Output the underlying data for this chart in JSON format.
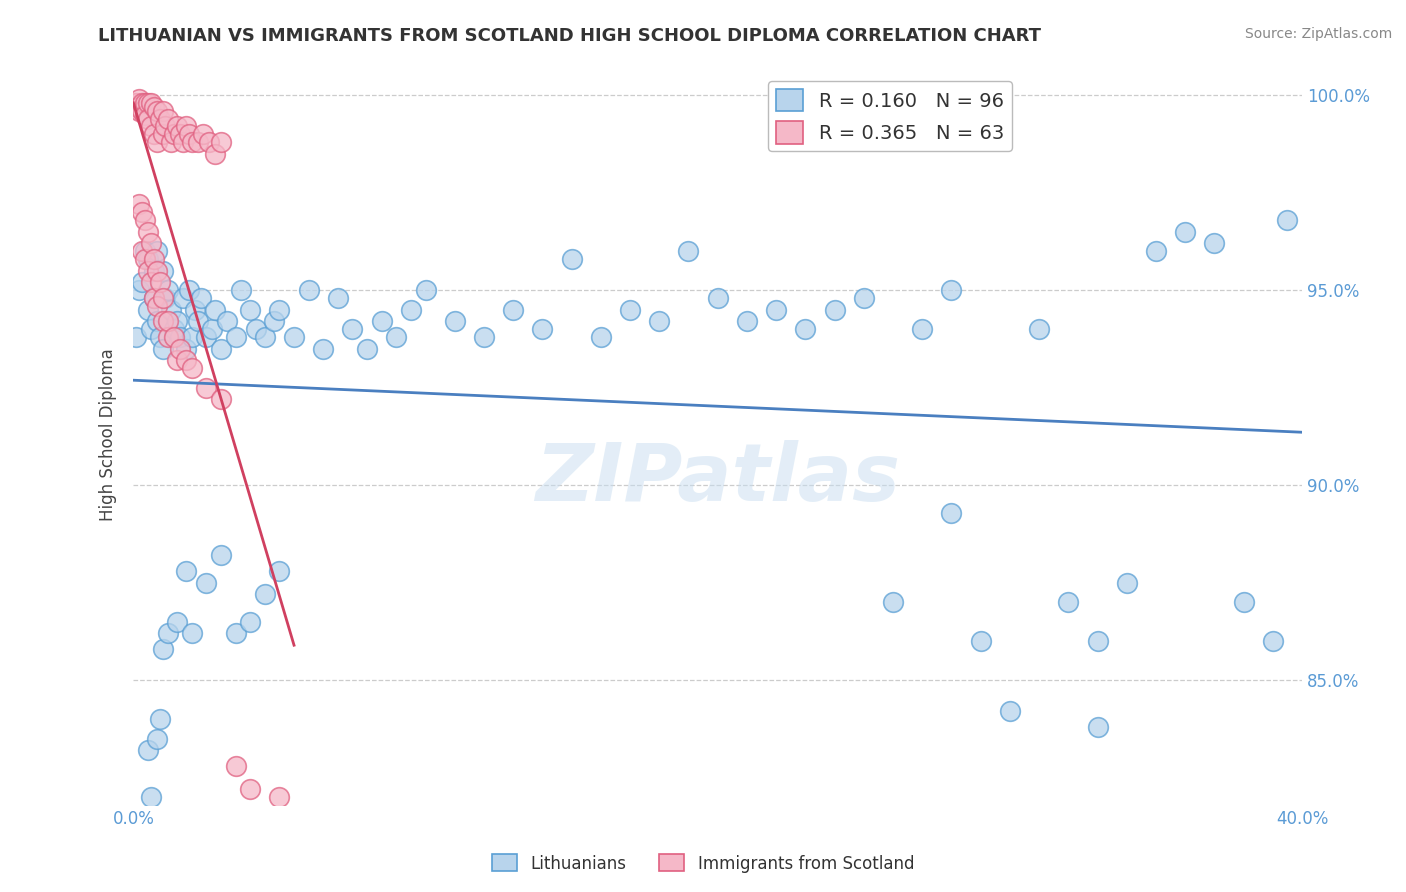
{
  "title": "LITHUANIAN VS IMMIGRANTS FROM SCOTLAND HIGH SCHOOL DIPLOMA CORRELATION CHART",
  "source": "Source: ZipAtlas.com",
  "ylabel": "High School Diploma",
  "xlim": [
    0.0,
    0.4
  ],
  "ylim": [
    0.818,
    1.008
  ],
  "yticks": [
    0.85,
    0.9,
    0.95,
    1.0
  ],
  "yticklabels": [
    "85.0%",
    "90.0%",
    "95.0%",
    "100.0%"
  ],
  "xtick_vals": [
    0.0,
    0.05,
    0.1,
    0.15,
    0.2,
    0.25,
    0.3,
    0.35,
    0.4
  ],
  "xtick_labels": [
    "0.0%",
    "",
    "",
    "",
    "",
    "",
    "",
    "",
    "40.0%"
  ],
  "blue_R": 0.16,
  "blue_N": 96,
  "pink_R": 0.365,
  "pink_N": 63,
  "blue_fill": "#b8d4ec",
  "pink_fill": "#f5b8c8",
  "blue_edge": "#5a9fd4",
  "pink_edge": "#e06080",
  "blue_line": "#4a7fc0",
  "pink_line": "#d04060",
  "grid_color": "#cccccc",
  "bg_color": "#ffffff",
  "watermark": "ZIPatlas",
  "blue_x": [
    0.001,
    0.002,
    0.003,
    0.004,
    0.005,
    0.005,
    0.006,
    0.007,
    0.007,
    0.008,
    0.008,
    0.009,
    0.01,
    0.01,
    0.011,
    0.012,
    0.013,
    0.014,
    0.015,
    0.016,
    0.017,
    0.018,
    0.019,
    0.02,
    0.021,
    0.022,
    0.023,
    0.025,
    0.027,
    0.028,
    0.03,
    0.032,
    0.035,
    0.037,
    0.04,
    0.042,
    0.045,
    0.048,
    0.05,
    0.055,
    0.06,
    0.065,
    0.07,
    0.075,
    0.08,
    0.085,
    0.09,
    0.095,
    0.1,
    0.11,
    0.12,
    0.13,
    0.14,
    0.15,
    0.16,
    0.17,
    0.18,
    0.19,
    0.2,
    0.21,
    0.22,
    0.23,
    0.24,
    0.25,
    0.26,
    0.27,
    0.28,
    0.29,
    0.3,
    0.31,
    0.32,
    0.33,
    0.34,
    0.35,
    0.36,
    0.37,
    0.38,
    0.39,
    0.395,
    0.005,
    0.006,
    0.008,
    0.009,
    0.01,
    0.012,
    0.015,
    0.018,
    0.02,
    0.025,
    0.03,
    0.035,
    0.04,
    0.045,
    0.05,
    0.28,
    0.33
  ],
  "blue_y": [
    0.938,
    0.95,
    0.952,
    0.96,
    0.945,
    0.958,
    0.94,
    0.948,
    0.955,
    0.942,
    0.96,
    0.938,
    0.935,
    0.955,
    0.948,
    0.95,
    0.945,
    0.94,
    0.942,
    0.938,
    0.948,
    0.935,
    0.95,
    0.938,
    0.945,
    0.942,
    0.948,
    0.938,
    0.94,
    0.945,
    0.935,
    0.942,
    0.938,
    0.95,
    0.945,
    0.94,
    0.938,
    0.942,
    0.945,
    0.938,
    0.95,
    0.935,
    0.948,
    0.94,
    0.935,
    0.942,
    0.938,
    0.945,
    0.95,
    0.942,
    0.938,
    0.945,
    0.94,
    0.958,
    0.938,
    0.945,
    0.942,
    0.96,
    0.948,
    0.942,
    0.945,
    0.94,
    0.945,
    0.948,
    0.87,
    0.94,
    0.95,
    0.86,
    0.842,
    0.94,
    0.87,
    0.86,
    0.875,
    0.96,
    0.965,
    0.962,
    0.87,
    0.86,
    0.968,
    0.832,
    0.82,
    0.835,
    0.84,
    0.858,
    0.862,
    0.865,
    0.878,
    0.862,
    0.875,
    0.882,
    0.862,
    0.865,
    0.872,
    0.878,
    0.893,
    0.838
  ],
  "pink_x": [
    0.001,
    0.001,
    0.002,
    0.002,
    0.002,
    0.003,
    0.003,
    0.004,
    0.004,
    0.005,
    0.005,
    0.006,
    0.006,
    0.007,
    0.007,
    0.008,
    0.008,
    0.009,
    0.01,
    0.01,
    0.011,
    0.012,
    0.013,
    0.014,
    0.015,
    0.016,
    0.017,
    0.018,
    0.019,
    0.02,
    0.022,
    0.024,
    0.026,
    0.028,
    0.03,
    0.003,
    0.004,
    0.005,
    0.006,
    0.007,
    0.008,
    0.01,
    0.012,
    0.015,
    0.002,
    0.003,
    0.004,
    0.005,
    0.006,
    0.007,
    0.008,
    0.009,
    0.01,
    0.012,
    0.014,
    0.016,
    0.018,
    0.02,
    0.025,
    0.03,
    0.035,
    0.04,
    0.05
  ],
  "pink_y": [
    0.998,
    0.998,
    0.999,
    0.997,
    0.996,
    0.998,
    0.996,
    0.998,
    0.995,
    0.998,
    0.994,
    0.998,
    0.992,
    0.997,
    0.99,
    0.996,
    0.988,
    0.994,
    0.996,
    0.99,
    0.992,
    0.994,
    0.988,
    0.99,
    0.992,
    0.99,
    0.988,
    0.992,
    0.99,
    0.988,
    0.988,
    0.99,
    0.988,
    0.985,
    0.988,
    0.96,
    0.958,
    0.955,
    0.952,
    0.948,
    0.946,
    0.942,
    0.938,
    0.932,
    0.972,
    0.97,
    0.968,
    0.965,
    0.962,
    0.958,
    0.955,
    0.952,
    0.948,
    0.942,
    0.938,
    0.935,
    0.932,
    0.93,
    0.925,
    0.922,
    0.828,
    0.822,
    0.82
  ]
}
